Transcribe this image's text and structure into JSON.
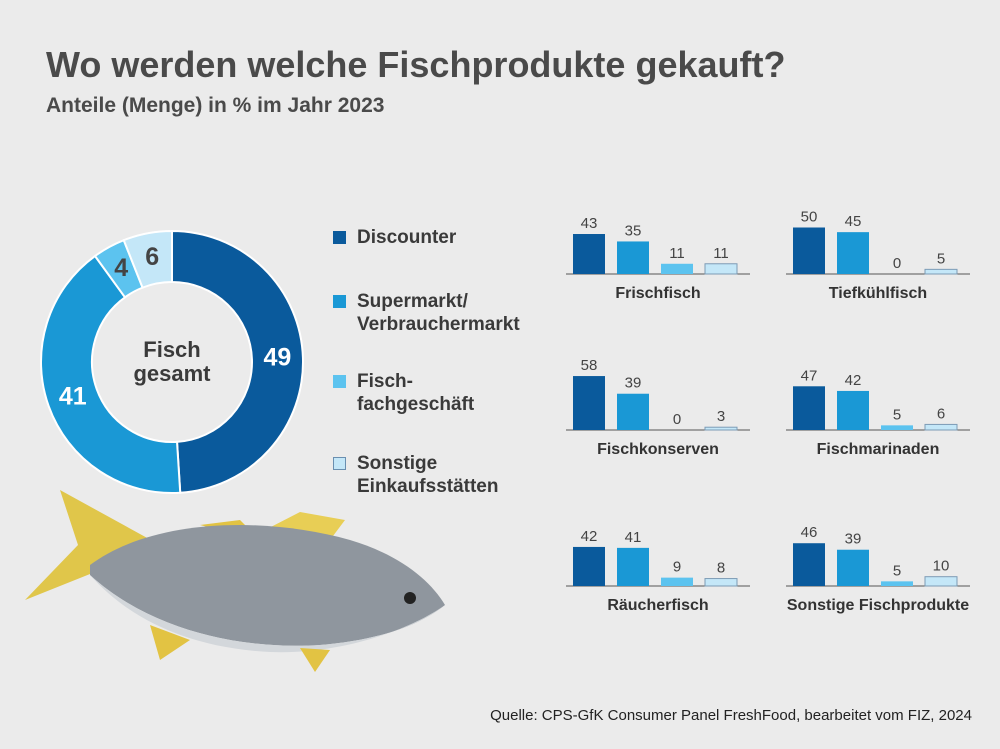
{
  "title": "Wo werden welche Fischprodukte gekauft?",
  "subtitle": "Anteile (Menge) in % im Jahr 2023",
  "source": "Quelle: CPS-GfK Consumer Panel FreshFood, bearbeitet vom FIZ, 2024",
  "chart_data": [
    {
      "type": "pie",
      "center_label": "Fisch gesamt",
      "categories": [
        "Discounter",
        "Supermarkt/ Verbrauchermarkt",
        "Fisch- fachgeschäft",
        "Sonstige Einkaufsstätten"
      ],
      "values": [
        49,
        41,
        4,
        6
      ],
      "colors": [
        "#0a5a9c",
        "#1a98d5",
        "#5cc3ef",
        "#c4e7f8"
      ]
    },
    {
      "type": "bar",
      "title": "Frischfisch",
      "values": [
        43,
        35,
        11,
        11
      ],
      "colors": [
        "#0a5a9c",
        "#1a98d5",
        "#5cc3ef",
        "#c4e7f8"
      ]
    },
    {
      "type": "bar",
      "title": "Tiefkühlfisch",
      "values": [
        50,
        45,
        0,
        5
      ],
      "colors": [
        "#0a5a9c",
        "#1a98d5",
        "#5cc3ef",
        "#c4e7f8"
      ]
    },
    {
      "type": "bar",
      "title": "Fischkonserven",
      "values": [
        58,
        39,
        0,
        3
      ],
      "colors": [
        "#0a5a9c",
        "#1a98d5",
        "#5cc3ef",
        "#c4e7f8"
      ]
    },
    {
      "type": "bar",
      "title": "Fischmarinaden",
      "values": [
        47,
        42,
        5,
        6
      ],
      "colors": [
        "#0a5a9c",
        "#1a98d5",
        "#5cc3ef",
        "#c4e7f8"
      ]
    },
    {
      "type": "bar",
      "title": "Räucherfisch",
      "values": [
        42,
        41,
        9,
        8
      ],
      "colors": [
        "#0a5a9c",
        "#1a98d5",
        "#5cc3ef",
        "#c4e7f8"
      ]
    },
    {
      "type": "bar",
      "title": "Sonstige Fischprodukte",
      "values": [
        46,
        39,
        5,
        10
      ],
      "colors": [
        "#0a5a9c",
        "#1a98d5",
        "#5cc3ef",
        "#c4e7f8"
      ]
    }
  ]
}
